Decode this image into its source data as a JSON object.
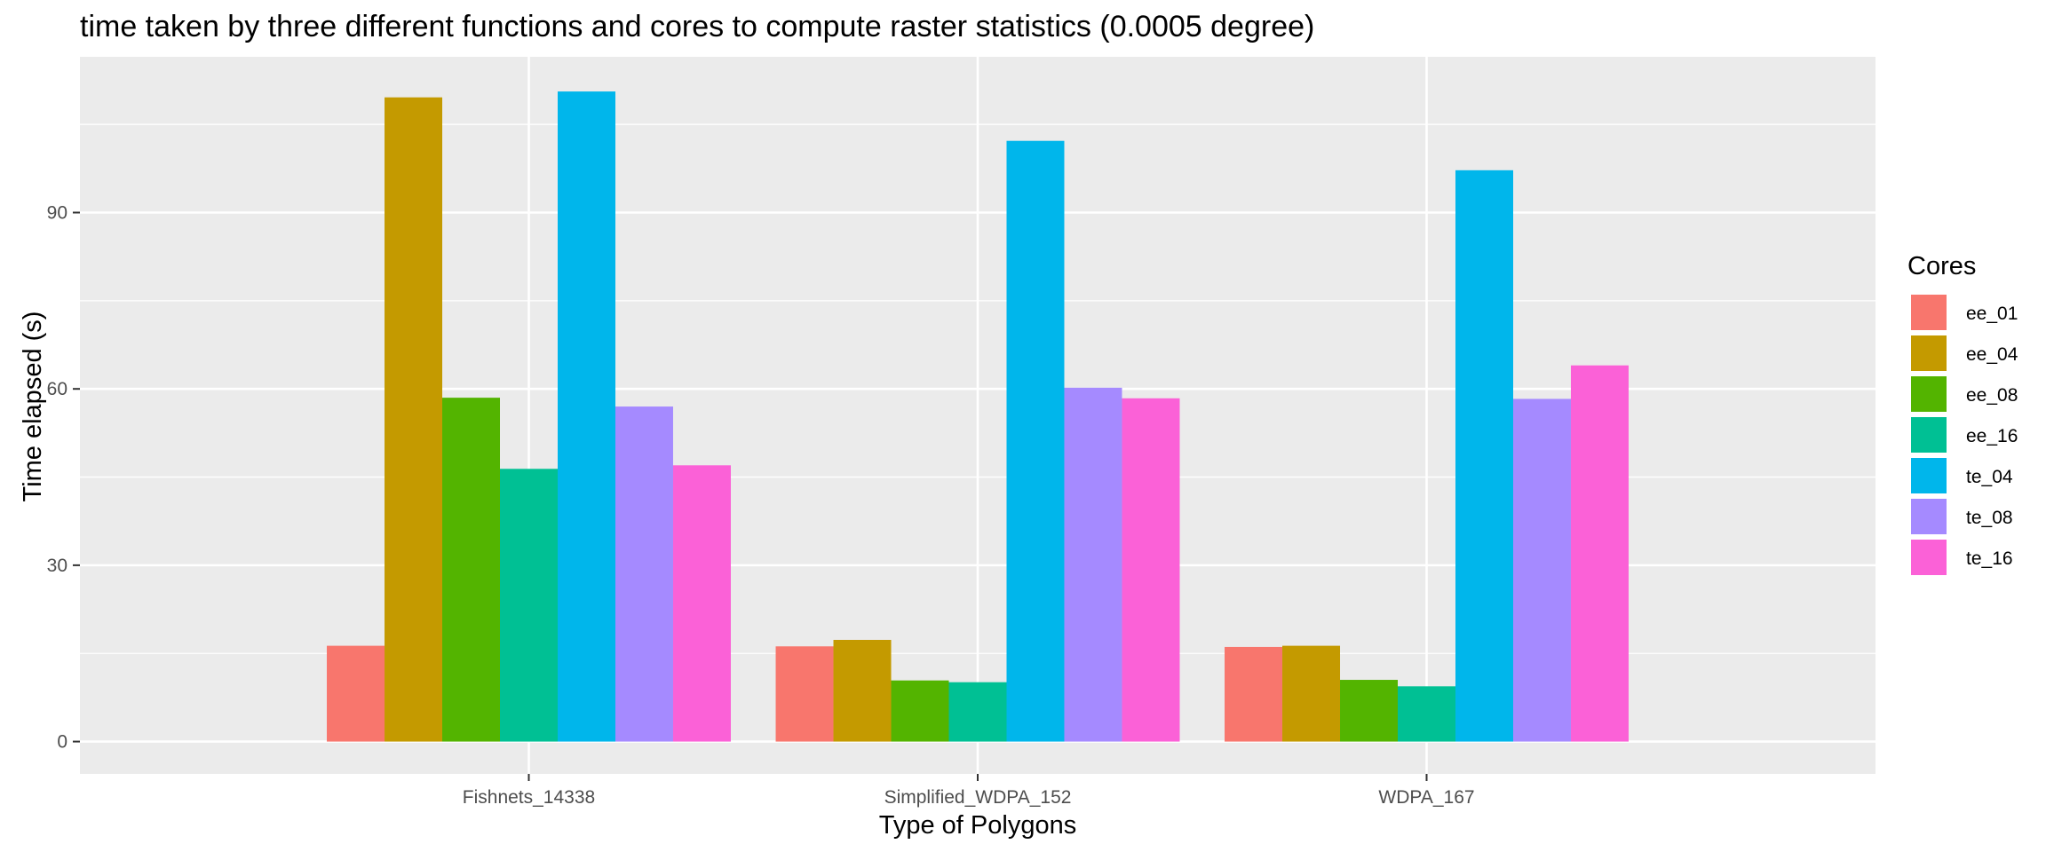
{
  "chart_data": {
    "type": "bar",
    "title": "time taken by three different functions and cores to compute raster statistics (0.0005 degree)",
    "xlabel": "Type of Polygons",
    "ylabel": "Time elapsed (s)",
    "categories": [
      "Fishnets_14338",
      "Simplified_WDPA_152",
      "WDPA_167"
    ],
    "y_ticks": [
      0,
      30,
      60,
      90
    ],
    "ylim": [
      -5.5,
      116.5
    ],
    "grid": true,
    "legend": {
      "title": "Cores",
      "position": "right"
    },
    "series": [
      {
        "name": "ee_01",
        "color": "#F8766D",
        "values": [
          16.3,
          16.2,
          16.1
        ]
      },
      {
        "name": "ee_04",
        "color": "#C49A00",
        "values": [
          109.6,
          17.3,
          16.3
        ]
      },
      {
        "name": "ee_08",
        "color": "#53B400",
        "values": [
          58.5,
          10.4,
          10.5
        ]
      },
      {
        "name": "ee_16",
        "color": "#00C094",
        "values": [
          46.4,
          10.1,
          9.4
        ]
      },
      {
        "name": "te_04",
        "color": "#00B6EB",
        "values": [
          110.6,
          102.2,
          97.2
        ]
      },
      {
        "name": "te_08",
        "color": "#A58AFF",
        "values": [
          57.0,
          60.2,
          58.3
        ]
      },
      {
        "name": "te_16",
        "color": "#FB61D7",
        "values": [
          47.0,
          58.4,
          64.0
        ]
      }
    ]
  }
}
